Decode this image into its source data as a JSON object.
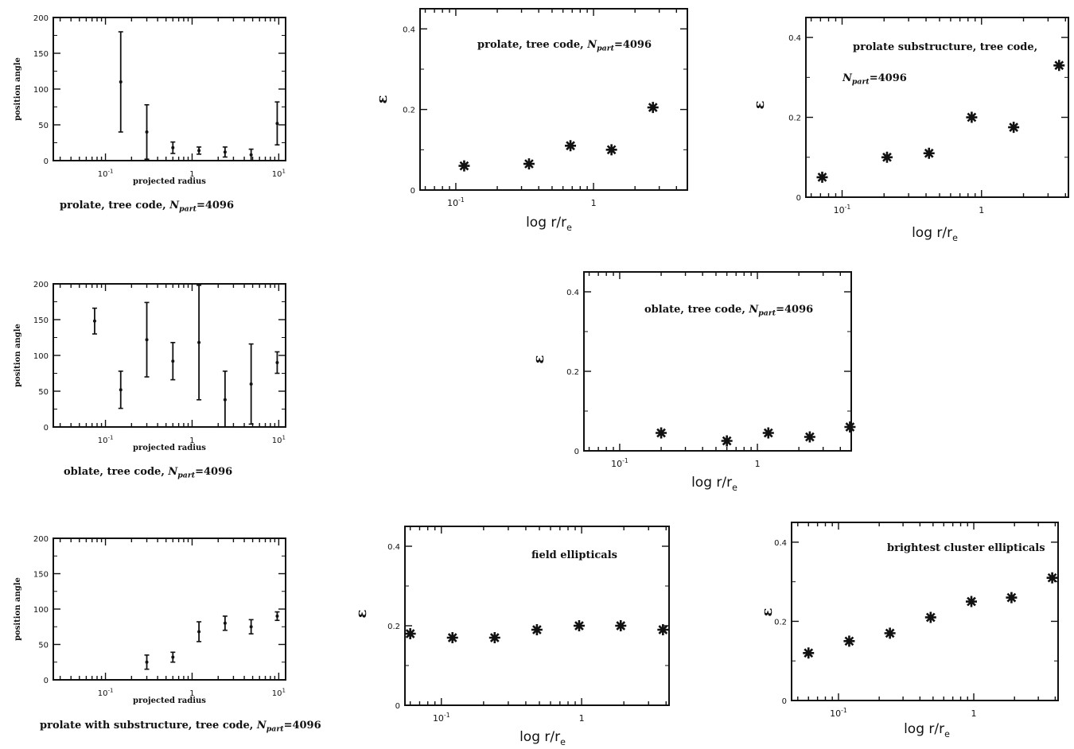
{
  "chart_data": [
    {
      "type": "scatter",
      "xscale": "log",
      "x_ticks": [
        "10-1",
        "1",
        "101"
      ],
      "y_ticks": [
        "0",
        "50",
        "100",
        "150",
        "200"
      ],
      "xlabel": "projected radius",
      "ylabel": "position angle",
      "caption": "prolate, tree code, Npart=4096",
      "xlim": [
        0.025,
        12
      ],
      "ylim": [
        0,
        200
      ],
      "series": [
        {
          "x": [
            0.15,
            0.3,
            0.6,
            1.2,
            2.4,
            4.8,
            9.6
          ],
          "y": [
            110,
            40,
            18,
            14,
            12,
            8,
            52
          ],
          "err": [
            70,
            38,
            8,
            5,
            7,
            8,
            30
          ]
        }
      ]
    },
    {
      "type": "scatter",
      "xscale": "log",
      "x_ticks": [
        "10-1",
        "1"
      ],
      "y_ticks": [
        "0",
        "0.2",
        "0.4"
      ],
      "xlabel": "log r/re",
      "ylabel": "ε",
      "annotation": "prolate, tree code, Npart=4096",
      "xlim": [
        0.055,
        4.8
      ],
      "ylim": [
        0,
        0.45
      ],
      "series": [
        {
          "x": [
            0.115,
            0.34,
            0.68,
            1.35,
            2.7
          ],
          "y": [
            0.06,
            0.065,
            0.11,
            0.1,
            0.205
          ]
        }
      ]
    },
    {
      "type": "scatter",
      "xscale": "log",
      "x_ticks": [
        "10-1",
        "1"
      ],
      "y_ticks": [
        "0",
        "0.2",
        "0.4"
      ],
      "xlabel": "log r/re",
      "ylabel": "ε",
      "annotation": "prolate substructure, tree code,",
      "annotation2": "Npart=4096",
      "xlim": [
        0.055,
        4.2
      ],
      "ylim": [
        0,
        0.45
      ],
      "series": [
        {
          "x": [
            0.072,
            0.21,
            0.42,
            0.85,
            1.7,
            3.6
          ],
          "y": [
            0.05,
            0.1,
            0.11,
            0.2,
            0.175,
            0.33
          ]
        }
      ]
    },
    {
      "type": "scatter",
      "xscale": "log",
      "x_ticks": [
        "10-1",
        "1",
        "101"
      ],
      "y_ticks": [
        "0",
        "50",
        "100",
        "150",
        "200"
      ],
      "xlabel": "projected radius",
      "ylabel": "position angle",
      "caption": "oblate, tree code, Npart=4096",
      "xlim": [
        0.025,
        12
      ],
      "ylim": [
        0,
        200
      ],
      "series": [
        {
          "x": [
            0.075,
            0.15,
            0.3,
            0.6,
            1.2,
            2.4,
            4.8,
            9.6
          ],
          "y": [
            148,
            52,
            122,
            92,
            118,
            38,
            60,
            90
          ],
          "err": [
            18,
            26,
            52,
            26,
            80,
            40,
            56,
            15
          ]
        }
      ]
    },
    {
      "type": "scatter",
      "xscale": "log",
      "x_ticks": [
        "10-1",
        "1"
      ],
      "y_ticks": [
        "0",
        "0.2",
        "0.4"
      ],
      "xlabel": "log r/re",
      "ylabel": "ε",
      "annotation": "oblate, tree code, Npart=4096",
      "xlim": [
        0.055,
        4.8
      ],
      "ylim": [
        0,
        0.45
      ],
      "series": [
        {
          "x": [
            0.2,
            0.6,
            1.2,
            2.4,
            4.7
          ],
          "y": [
            0.045,
            0.025,
            0.045,
            0.035,
            0.06
          ]
        }
      ]
    },
    {
      "type": "scatter",
      "xscale": "log",
      "x_ticks": [
        "10-1",
        "1",
        "101"
      ],
      "y_ticks": [
        "0",
        "50",
        "100",
        "150",
        "200"
      ],
      "xlabel": "projected radius",
      "ylabel": "position angle",
      "caption": "prolate with substructure, tree code, Npart=4096",
      "xlim": [
        0.025,
        12
      ],
      "ylim": [
        0,
        200
      ],
      "series": [
        {
          "x": [
            0.3,
            0.6,
            1.2,
            2.4,
            4.8,
            9.6
          ],
          "y": [
            25,
            32,
            68,
            80,
            75,
            90
          ],
          "err": [
            10,
            7,
            14,
            10,
            10,
            6
          ]
        }
      ]
    },
    {
      "type": "scatter",
      "xscale": "log",
      "x_ticks": [
        "10-1",
        "1"
      ],
      "y_ticks": [
        "0",
        "0.2",
        "0.4"
      ],
      "xlabel": "log r/re",
      "ylabel": "ε",
      "annotation": "field ellipticals",
      "xlim": [
        0.055,
        4.2
      ],
      "ylim": [
        0,
        0.45
      ],
      "series": [
        {
          "x": [
            0.06,
            0.12,
            0.24,
            0.48,
            0.96,
            1.9,
            3.8
          ],
          "y": [
            0.18,
            0.17,
            0.17,
            0.19,
            0.2,
            0.2,
            0.19
          ]
        }
      ]
    },
    {
      "type": "scatter",
      "xscale": "log",
      "x_ticks": [
        "10-1",
        "1"
      ],
      "y_ticks": [
        "0",
        "0.2",
        "0.4"
      ],
      "xlabel": "log r/re",
      "ylabel": "ε",
      "annotation": "brightest cluster ellipticals",
      "xlim": [
        0.045,
        4.2
      ],
      "ylim": [
        0,
        0.45
      ],
      "series": [
        {
          "x": [
            0.06,
            0.12,
            0.24,
            0.48,
            0.96,
            1.9,
            3.8
          ],
          "y": [
            0.12,
            0.15,
            0.17,
            0.21,
            0.25,
            0.26,
            0.31
          ]
        }
      ]
    }
  ]
}
